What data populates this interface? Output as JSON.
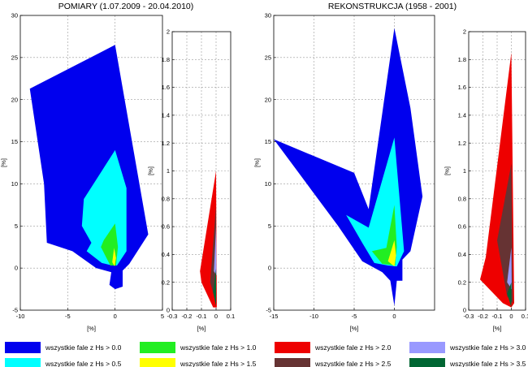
{
  "titles": {
    "left": "POMIARY (1.07.2009 - 20.04.2010)",
    "right": "REKONSTRUKCJA (1958 - 2001)"
  },
  "legend": {
    "items": [
      {
        "label": "wszystkie fale z Hs > 0.0",
        "color": "#0000ee"
      },
      {
        "label": "wszystkie fale z Hs > 0.5",
        "color": "#00ffff"
      },
      {
        "label": "wszystkie fale z Hs > 1.0",
        "color": "#22ee22"
      },
      {
        "label": "wszystkie fale z Hs > 1.5",
        "color": "#ffff00"
      },
      {
        "label": "wszystkie fale z Hs > 2.0",
        "color": "#ee0000"
      },
      {
        "label": "wszystkie fale z Hs > 2.5",
        "color": "#663333"
      },
      {
        "label": "wszystkie fale z Hs > 3.0",
        "color": "#9999ff"
      },
      {
        "label": "wszystkie fale z Hs > 3.5",
        "color": "#006633"
      }
    ]
  },
  "chart_data": [
    {
      "type": "area",
      "panel": "pomiary-main",
      "title": "POMIARY (1.07.2009 - 20.04.2010)",
      "xlabel": "[%]",
      "ylabel": "[%]",
      "xlim": [
        -10,
        5
      ],
      "ylim": [
        -5,
        30
      ],
      "xticks": [
        -10,
        -5,
        0,
        5
      ],
      "yticks": [
        -5,
        0,
        5,
        10,
        15,
        20,
        25,
        30
      ],
      "grid": true,
      "series": [
        {
          "name": "wszystkie fale z Hs > 0.0",
          "color": "#0000ee",
          "points": [
            [
              0,
              26.5
            ],
            [
              3.5,
              4
            ],
            [
              1.5,
              0.5
            ],
            [
              0.8,
              -0.3
            ],
            [
              0.8,
              -2.2
            ],
            [
              0,
              -2.5
            ],
            [
              -0.6,
              -2
            ],
            [
              -0.4,
              -0.5
            ],
            [
              -2,
              0
            ],
            [
              -4.5,
              2
            ],
            [
              -7.2,
              3
            ],
            [
              -7.5,
              10
            ],
            [
              -9,
              21.3
            ]
          ]
        },
        {
          "name": "wszystkie fale z Hs > 0.5",
          "color": "#00ffff",
          "points": [
            [
              0,
              14
            ],
            [
              1.2,
              9.5
            ],
            [
              1.2,
              2
            ],
            [
              0.2,
              0.3
            ],
            [
              -0.3,
              0.3
            ],
            [
              -1.4,
              0.6
            ],
            [
              -3,
              2
            ],
            [
              -2.5,
              3
            ],
            [
              -3.5,
              5
            ],
            [
              -3.3,
              8.2
            ]
          ]
        },
        {
          "name": "wszystkie fale z Hs > 1.0",
          "color": "#22ee22",
          "points": [
            [
              0,
              5.3
            ],
            [
              0.3,
              2.5
            ],
            [
              0.1,
              0.3
            ],
            [
              -0.5,
              0.3
            ],
            [
              -1.5,
              2.5
            ],
            [
              -1.2,
              3.3
            ]
          ]
        },
        {
          "name": "wszystkie fale z Hs > 1.5",
          "color": "#ffff00",
          "points": [
            [
              -0.1,
              2.4
            ],
            [
              0.1,
              1.2
            ],
            [
              -0.05,
              0.2
            ],
            [
              -0.3,
              0.7
            ]
          ]
        }
      ]
    },
    {
      "type": "area",
      "panel": "pomiary-zoom",
      "xlabel": "[%]",
      "ylabel": "[%]",
      "xlim": [
        -0.3,
        0.1
      ],
      "ylim": [
        0,
        2
      ],
      "xticks": [
        -0.3,
        -0.2,
        -0.1,
        0,
        0.1
      ],
      "yticks": [
        0,
        0.2,
        0.4,
        0.6,
        0.8,
        1,
        1.2,
        1.4,
        1.6,
        1.8,
        2
      ],
      "grid": true,
      "series": [
        {
          "name": "wszystkie fale z Hs > 2.0",
          "color": "#ee0000",
          "points": [
            [
              0,
              1.0
            ],
            [
              0.005,
              0.02
            ],
            [
              -0.02,
              0.02
            ],
            [
              -0.1,
              0.2
            ],
            [
              -0.11,
              0.28
            ]
          ]
        },
        {
          "name": "wszystkie fale z Hs > 2.5",
          "color": "#663333",
          "points": [
            [
              0,
              0.75
            ],
            [
              0,
              0.05
            ],
            [
              -0.04,
              0.2
            ]
          ]
        },
        {
          "name": "wszystkie fale z Hs > 3.0",
          "color": "#9999ff",
          "points": [
            [
              0,
              0.6
            ],
            [
              0.003,
              0.25
            ],
            [
              -0.015,
              0.28
            ]
          ]
        },
        {
          "name": "wszystkie fale z Hs > 3.5",
          "color": "#006633",
          "points": [
            [
              0,
              0.3
            ],
            [
              0,
              0.03
            ],
            [
              -0.02,
              0.13
            ]
          ]
        }
      ]
    },
    {
      "type": "area",
      "panel": "rekonstrukcja-main",
      "title": "REKONSTRUKCJA (1958 - 2001)",
      "xlabel": "[%]",
      "ylabel": "[%]",
      "xlim": [
        -15,
        5
      ],
      "ylim": [
        -5,
        30
      ],
      "xticks": [
        -15,
        -10,
        -5,
        0
      ],
      "yticks": [
        -5,
        0,
        5,
        10,
        15,
        20,
        25,
        30
      ],
      "grid": true,
      "series": [
        {
          "name": "wszystkie fale z Hs > 0.0",
          "color": "#0000ee",
          "points": [
            [
              0,
              28.5
            ],
            [
              2,
              19
            ],
            [
              3.5,
              8.5
            ],
            [
              2,
              2
            ],
            [
              1,
              1
            ],
            [
              1,
              -1.5
            ],
            [
              0.3,
              -1.5
            ],
            [
              0,
              -4.5
            ],
            [
              -0.5,
              -1.5
            ],
            [
              -1.5,
              -0.5
            ],
            [
              -4,
              0.8
            ],
            [
              -7,
              5
            ],
            [
              -15,
              15.3
            ],
            [
              -5,
              11.3
            ],
            [
              -3.2,
              7
            ]
          ]
        },
        {
          "name": "wszystkie fale z Hs > 0.5",
          "color": "#00ffff",
          "points": [
            [
              0,
              15.5
            ],
            [
              1.2,
              2
            ],
            [
              0.3,
              0.2
            ],
            [
              -0.8,
              0.3
            ],
            [
              -2.5,
              0.6
            ],
            [
              -4,
              3
            ],
            [
              -6,
              6.3
            ],
            [
              -3.2,
              4.8
            ]
          ]
        },
        {
          "name": "wszystkie fale z Hs > 1.0",
          "color": "#22ee22",
          "points": [
            [
              0,
              7.5
            ],
            [
              0.3,
              2.5
            ],
            [
              0.1,
              0.3
            ],
            [
              -1.5,
              0.5
            ],
            [
              -2.8,
              2
            ],
            [
              -1,
              2.4
            ]
          ]
        },
        {
          "name": "wszystkie fale z Hs > 1.5",
          "color": "#ffff00",
          "points": [
            [
              0,
              3.3
            ],
            [
              0.2,
              1.5
            ],
            [
              0,
              0.2
            ],
            [
              -0.8,
              0.8
            ]
          ]
        }
      ]
    },
    {
      "type": "area",
      "panel": "rekonstrukcja-zoom",
      "xlabel": "[%]",
      "ylabel": "[%]",
      "xlim": [
        -0.3,
        0.1
      ],
      "ylim": [
        0,
        2
      ],
      "xticks": [
        -0.3,
        -0.2,
        -0.1,
        0,
        0.1
      ],
      "yticks": [
        0,
        0.2,
        0.4,
        0.6,
        0.8,
        1,
        1.2,
        1.4,
        1.6,
        1.8,
        2
      ],
      "grid": true,
      "series": [
        {
          "name": "wszystkie fale z Hs > 2.0",
          "color": "#ee0000",
          "points": [
            [
              0,
              1.85
            ],
            [
              0.02,
              0.05
            ],
            [
              0,
              0.02
            ],
            [
              -0.06,
              0.05
            ],
            [
              -0.22,
              0.22
            ],
            [
              -0.18,
              0.38
            ]
          ]
        },
        {
          "name": "wszystkie fale z Hs > 2.5",
          "color": "#663333",
          "points": [
            [
              0,
              1.05
            ],
            [
              0.01,
              0.05
            ],
            [
              -0.03,
              0.1
            ],
            [
              -0.1,
              0.5
            ]
          ]
        },
        {
          "name": "wszystkie fale z Hs > 3.0",
          "color": "#9999ff",
          "points": [
            [
              0,
              0.45
            ],
            [
              0.003,
              0.15
            ],
            [
              -0.03,
              0.2
            ]
          ]
        },
        {
          "name": "wszystkie fale z Hs > 3.5",
          "color": "#006633",
          "points": [
            [
              0,
              0.2
            ],
            [
              0,
              0.02
            ],
            [
              -0.03,
              0.12
            ]
          ]
        }
      ]
    }
  ]
}
